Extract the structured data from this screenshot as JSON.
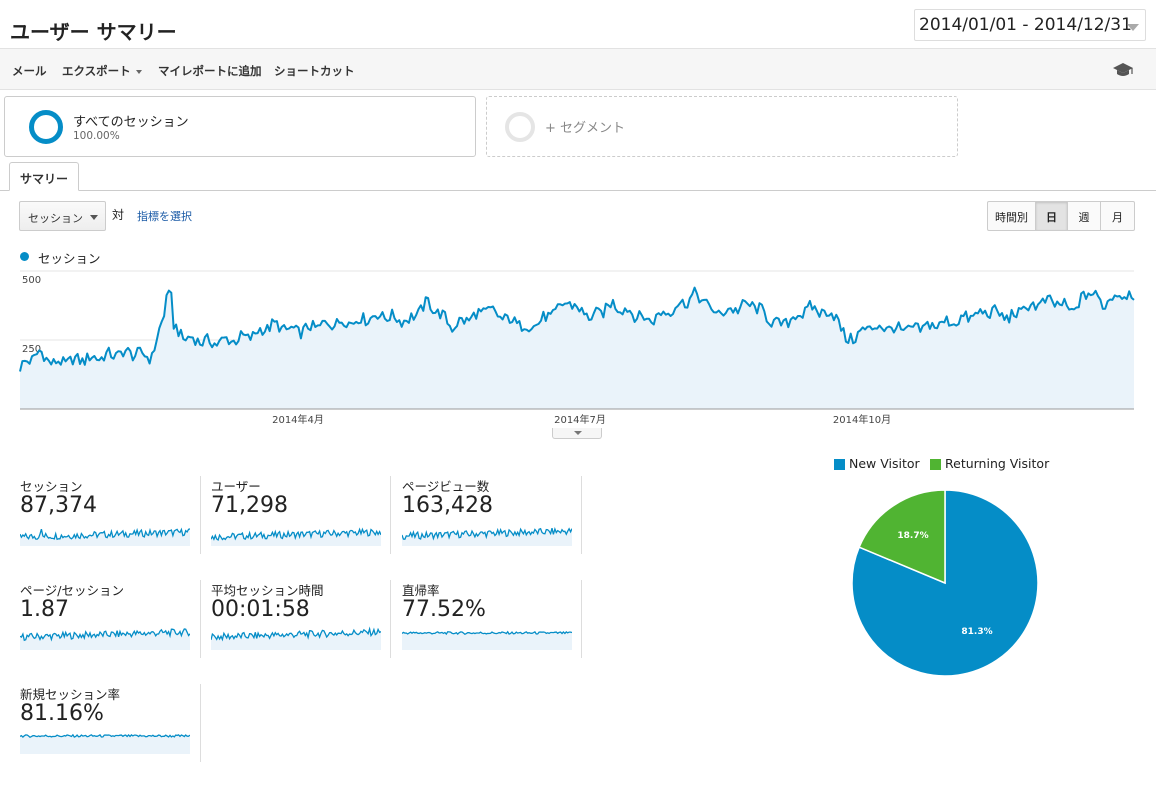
{
  "header": {
    "title": "ユーザー サマリー",
    "date_range": "2014/01/01 - 2014/12/31"
  },
  "toolbar": {
    "mail": "メール",
    "export": "エクスポート",
    "add_to_report": "マイレポートに追加",
    "shortcut": "ショートカット"
  },
  "segments": {
    "all": {
      "name": "すべてのセッション",
      "percent": "100.00%"
    },
    "add": {
      "label": "+ セグメント"
    }
  },
  "tabs": {
    "summary": "サマリー"
  },
  "controls": {
    "metric": "セッション",
    "vs": "対",
    "choose_metric": "指標を選択",
    "periods": [
      "時間別",
      "日",
      "週",
      "月"
    ],
    "active_period": "日"
  },
  "colors": {
    "accent": "#058dc7",
    "returning": "#50b432",
    "area_fill": "#eaf3fa"
  },
  "chart_data": [
    {
      "type": "area",
      "series": [
        {
          "name": "セッション"
        }
      ],
      "y_ticks": [
        "500",
        "250"
      ],
      "ylim": [
        0,
        500
      ],
      "x_ticks": [
        "2014年4月",
        "2014年7月",
        "2014年10月"
      ],
      "x_range": [
        "2014/01/01",
        "2014/12/31"
      ],
      "anchors": [
        [
          0,
          150
        ],
        [
          8,
          205
        ],
        [
          14,
          165
        ],
        [
          30,
          185
        ],
        [
          45,
          205
        ],
        [
          55,
          190
        ],
        [
          60,
          340
        ],
        [
          61,
          430
        ],
        [
          63,
          400
        ],
        [
          64,
          300
        ],
        [
          68,
          260
        ],
        [
          80,
          240
        ],
        [
          95,
          260
        ],
        [
          105,
          305
        ],
        [
          115,
          280
        ],
        [
          128,
          310
        ],
        [
          140,
          320
        ],
        [
          150,
          340
        ],
        [
          162,
          320
        ],
        [
          170,
          385
        ],
        [
          180,
          300
        ],
        [
          195,
          360
        ],
        [
          200,
          335
        ],
        [
          212,
          295
        ],
        [
          222,
          345
        ],
        [
          228,
          390
        ],
        [
          238,
          330
        ],
        [
          247,
          380
        ],
        [
          262,
          320
        ],
        [
          271,
          360
        ],
        [
          282,
          415
        ],
        [
          290,
          345
        ],
        [
          305,
          380
        ],
        [
          316,
          300
        ],
        [
          329,
          365
        ],
        [
          340,
          340
        ],
        [
          344,
          245
        ],
        [
          355,
          300
        ],
        [
          370,
          285
        ],
        [
          390,
          320
        ],
        [
          404,
          355
        ],
        [
          412,
          330
        ],
        [
          421,
          375
        ],
        [
          430,
          390
        ],
        [
          439,
          355
        ],
        [
          445,
          430
        ],
        [
          451,
          380
        ],
        [
          458,
          420
        ],
        [
          464,
          410
        ]
      ],
      "noise_amplitude": 22
    },
    {
      "type": "pie",
      "labels": [
        "New Visitor",
        "Returning Visitor"
      ],
      "values": [
        81.3,
        18.7
      ],
      "data_labels": [
        "81.3%",
        "18.7%"
      ],
      "legend": "top"
    }
  ],
  "scorecards": [
    {
      "label": "セッション",
      "value": "87,374"
    },
    {
      "label": "ユーザー",
      "value": "71,298"
    },
    {
      "label": "ページビュー数",
      "value": "163,428"
    },
    {
      "label": "ページ/セッション",
      "value": "1.87"
    },
    {
      "label": "平均セッション時間",
      "value": "00:01:58"
    },
    {
      "label": "直帰率",
      "value": "77.52%"
    },
    {
      "label": "新規セッション率",
      "value": "81.16%"
    }
  ]
}
